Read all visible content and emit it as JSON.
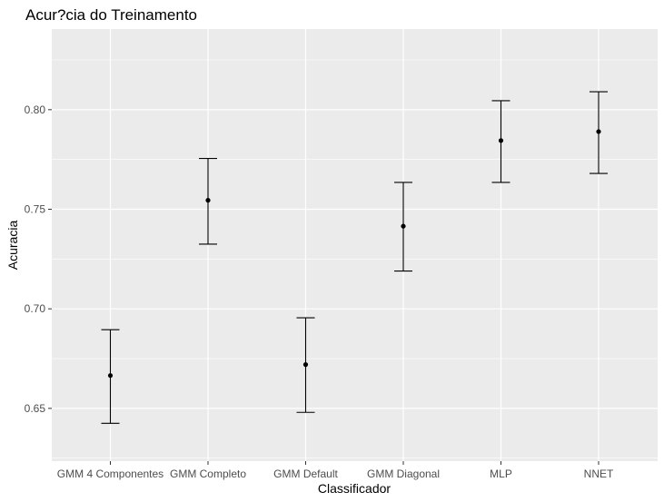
{
  "chart_data": {
    "type": "scatter",
    "title": "Acur?cia do Treinamento",
    "xlabel": "Classificador",
    "ylabel": "Acuracia",
    "categories": [
      "GMM 4 Componentes",
      "GMM Completo",
      "GMM Default",
      "GMM Diagonal",
      "MLP",
      "NNET"
    ],
    "series": [
      {
        "values": [
          0.6665,
          0.7545,
          0.672,
          0.7415,
          0.7845,
          0.789
        ],
        "error_low": [
          0.6425,
          0.7325,
          0.648,
          0.719,
          0.7635,
          0.768
        ],
        "error_high": [
          0.6895,
          0.7755,
          0.6955,
          0.7635,
          0.8045,
          0.809
        ]
      }
    ],
    "ylim": [
      0.6235,
      0.8405
    ],
    "yticks": [
      0.65,
      0.7,
      0.75,
      0.8
    ],
    "ytick_labels": [
      "0.65",
      "0.70",
      "0.75",
      "0.80"
    ],
    "grid": true,
    "colors": {
      "panel": "#ebebeb",
      "grid_major": "#ffffff",
      "point": "#000000",
      "tick_label": "#4d4d4d"
    }
  }
}
